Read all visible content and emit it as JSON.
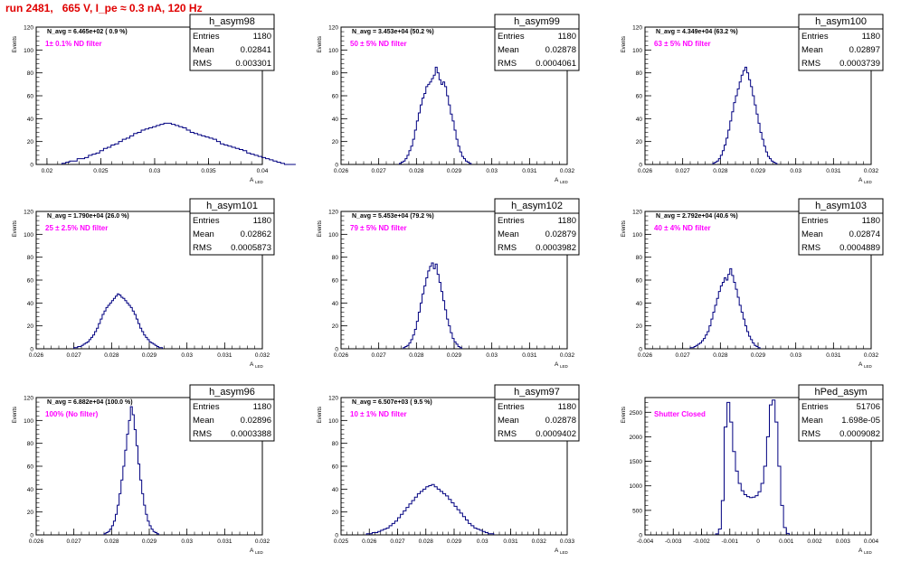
{
  "title": "run 2481,   665 V, I_pe ≈ 0.3 nA, 120 Hz",
  "colors": {
    "title": "#e00000",
    "annotation": "#ff00ff",
    "histogram": "#000080",
    "axis": "#000000"
  },
  "stat_labels": {
    "entries": "Entries",
    "mean": "Mean",
    "rms": "RMS"
  },
  "y_axis_label": "Events",
  "x_axis_label": "A",
  "x_axis_label_sub": "LED",
  "chart_data": [
    {
      "type": "bar",
      "name": "h_asym98",
      "n_avg": "N_avg = 6.465e+02 ( 0.9 %)",
      "filter": "1± 0.1% ND filter",
      "entries": "1180",
      "mean": "0.02841",
      "rms": "0.003301",
      "xlim": [
        0.019,
        0.04
      ],
      "ylim": [
        0,
        120
      ],
      "xticks": [
        0.02,
        0.025,
        0.03,
        0.035,
        0.04
      ],
      "xtick_labels": [
        "0.02",
        "0.025",
        "0.03",
        "0.035",
        "0.04"
      ],
      "yticks": [
        0,
        20,
        40,
        60,
        80,
        100,
        120
      ],
      "bins": {
        "start": 0.0214,
        "width": 0.00035,
        "values": [
          1,
          2,
          3,
          3,
          5,
          5,
          6,
          8,
          9,
          10,
          12,
          14,
          15,
          17,
          18,
          20,
          22,
          23,
          25,
          27,
          28,
          30,
          31,
          32,
          33,
          34,
          35,
          36,
          36,
          35,
          34,
          33,
          32,
          30,
          28,
          27,
          26,
          25,
          24,
          23,
          22,
          20,
          18,
          17,
          16,
          15,
          14,
          13,
          12,
          10,
          9,
          8,
          7,
          6,
          5,
          4,
          3,
          2,
          1,
          0,
          0,
          0
        ]
      }
    },
    {
      "type": "bar",
      "name": "h_asym99",
      "n_avg": "N_avg = 3.453e+04 (50.2 %)",
      "filter": "50 ± 5% ND filter",
      "entries": "1180",
      "mean": "0.02878",
      "rms": "0.0004061",
      "xlim": [
        0.026,
        0.032
      ],
      "ylim": [
        0,
        120
      ],
      "xticks": [
        0.026,
        0.027,
        0.028,
        0.029,
        0.03,
        0.031,
        0.032
      ],
      "xtick_labels": [
        "0.026",
        "0.027",
        "0.028",
        "0.029",
        "0.03",
        "0.031",
        "0.032"
      ],
      "yticks": [
        0,
        20,
        40,
        60,
        80,
        100,
        120
      ],
      "bins": {
        "start": 0.02755,
        "width": 5e-05,
        "values": [
          1,
          2,
          3,
          5,
          8,
          12,
          16,
          22,
          30,
          38,
          45,
          52,
          58,
          62,
          68,
          70,
          72,
          75,
          78,
          85,
          80,
          74,
          70,
          72,
          68,
          60,
          52,
          44,
          38,
          30,
          22,
          16,
          11,
          7,
          5,
          3,
          2,
          1
        ]
      }
    },
    {
      "type": "bar",
      "name": "h_asym100",
      "n_avg": "N_avg = 4.349e+04 (63.2 %)",
      "filter": "63 ± 5% ND filter",
      "entries": "1180",
      "mean": "0.02897",
      "rms": "0.0003739",
      "xlim": [
        0.026,
        0.032
      ],
      "ylim": [
        0,
        120
      ],
      "xticks": [
        0.026,
        0.027,
        0.028,
        0.029,
        0.03,
        0.031,
        0.032
      ],
      "xtick_labels": [
        "0.026",
        "0.027",
        "0.028",
        "0.029",
        "0.03",
        "0.031",
        "0.032"
      ],
      "yticks": [
        0,
        20,
        40,
        60,
        80,
        100,
        120
      ],
      "bins": {
        "start": 0.0278,
        "width": 5e-05,
        "values": [
          1,
          2,
          3,
          5,
          8,
          12,
          17,
          23,
          30,
          38,
          46,
          54,
          60,
          66,
          72,
          78,
          82,
          85,
          80,
          74,
          68,
          60,
          52,
          44,
          36,
          28,
          22,
          16,
          11,
          7,
          5,
          3,
          2,
          1
        ]
      }
    },
    {
      "type": "bar",
      "name": "h_asym101",
      "n_avg": "N_avg = 1.790e+04 (26.0 %)",
      "filter": "25 ± 2.5% ND filter",
      "entries": "1180",
      "mean": "0.02862",
      "rms": "0.0005873",
      "xlim": [
        0.026,
        0.032
      ],
      "ylim": [
        0,
        120
      ],
      "xticks": [
        0.026,
        0.027,
        0.028,
        0.029,
        0.03,
        0.031,
        0.032
      ],
      "xtick_labels": [
        "0.026",
        "0.027",
        "0.028",
        "0.029",
        "0.03",
        "0.031",
        "0.032"
      ],
      "yticks": [
        0,
        20,
        40,
        60,
        80,
        100,
        120
      ],
      "bins": {
        "start": 0.027,
        "width": 5e-05,
        "values": [
          1,
          1,
          2,
          2,
          3,
          4,
          5,
          6,
          8,
          10,
          12,
          15,
          18,
          22,
          26,
          30,
          33,
          36,
          38,
          40,
          42,
          44,
          46,
          48,
          47,
          45,
          44,
          42,
          40,
          38,
          36,
          33,
          30,
          26,
          22,
          18,
          15,
          12,
          10,
          8,
          6,
          5,
          4,
          3,
          2,
          1,
          1
        ]
      }
    },
    {
      "type": "bar",
      "name": "h_asym102",
      "n_avg": "N_avg = 5.453e+04 (79.2 %)",
      "filter": "79 ± 5% ND filter",
      "entries": "1180",
      "mean": "0.02879",
      "rms": "0.0003982",
      "xlim": [
        0.026,
        0.032
      ],
      "ylim": [
        0,
        120
      ],
      "xticks": [
        0.026,
        0.027,
        0.028,
        0.029,
        0.03,
        0.031,
        0.032
      ],
      "xtick_labels": [
        "0.026",
        "0.027",
        "0.028",
        "0.029",
        "0.03",
        "0.031",
        "0.032"
      ],
      "yticks": [
        0,
        20,
        40,
        60,
        80,
        100,
        120
      ],
      "bins": {
        "start": 0.02765,
        "width": 5e-05,
        "values": [
          1,
          2,
          3,
          5,
          8,
          12,
          17,
          24,
          32,
          40,
          48,
          55,
          62,
          68,
          72,
          75,
          70,
          74,
          65,
          58,
          50,
          42,
          34,
          26,
          20,
          14,
          9,
          6,
          4,
          2,
          1
        ]
      }
    },
    {
      "type": "bar",
      "name": "h_asym103",
      "n_avg": "N_avg = 2.792e+04 (40.6 %)",
      "filter": "40 ± 4% ND filter",
      "entries": "1180",
      "mean": "0.02874",
      "rms": "0.0004889",
      "xlim": [
        0.026,
        0.032
      ],
      "ylim": [
        0,
        120
      ],
      "xticks": [
        0.026,
        0.027,
        0.028,
        0.029,
        0.03,
        0.031,
        0.032
      ],
      "xtick_labels": [
        "0.026",
        "0.027",
        "0.028",
        "0.029",
        "0.03",
        "0.031",
        "0.032"
      ],
      "yticks": [
        0,
        20,
        40,
        60,
        80,
        100,
        120
      ],
      "bins": {
        "start": 0.0272,
        "width": 5e-05,
        "values": [
          1,
          1,
          2,
          3,
          4,
          5,
          7,
          9,
          12,
          15,
          20,
          26,
          32,
          38,
          44,
          50,
          55,
          58,
          62,
          60,
          65,
          70,
          64,
          58,
          52,
          45,
          38,
          32,
          26,
          20,
          15,
          11,
          8,
          5,
          3,
          2,
          1
        ]
      }
    },
    {
      "type": "bar",
      "name": "h_asym96",
      "n_avg": "N_avg = 6.882e+04 (100.0 %)",
      "filter": "100% (No filter)",
      "entries": "1180",
      "mean": "0.02896",
      "rms": "0.0003388",
      "xlim": [
        0.026,
        0.032
      ],
      "ylim": [
        0,
        120
      ],
      "xticks": [
        0.026,
        0.027,
        0.028,
        0.029,
        0.03,
        0.031,
        0.032
      ],
      "xtick_labels": [
        "0.026",
        "0.027",
        "0.028",
        "0.029",
        "0.03",
        "0.031",
        "0.032"
      ],
      "yticks": [
        0,
        20,
        40,
        60,
        80,
        100,
        120
      ],
      "bins": {
        "start": 0.0278,
        "width": 5e-05,
        "values": [
          1,
          2,
          3,
          5,
          8,
          12,
          18,
          26,
          36,
          48,
          60,
          74,
          88,
          100,
          112,
          105,
          92,
          78,
          62,
          48,
          36,
          26,
          18,
          12,
          8,
          5,
          3,
          2,
          1
        ]
      }
    },
    {
      "type": "bar",
      "name": "h_asym97",
      "n_avg": "N_avg = 6.507e+03 ( 9.5 %)",
      "filter": "10 ± 1% ND filter",
      "entries": "1180",
      "mean": "0.02878",
      "rms": "0.0009402",
      "xlim": [
        0.025,
        0.033
      ],
      "ylim": [
        0,
        120
      ],
      "xticks": [
        0.025,
        0.026,
        0.027,
        0.028,
        0.029,
        0.03,
        0.031,
        0.032,
        0.033
      ],
      "xtick_labels": [
        "0.025",
        "0.026",
        "0.027",
        "0.028",
        "0.029",
        "0.03",
        "0.031",
        "0.032",
        "0.033"
      ],
      "yticks": [
        0,
        20,
        40,
        60,
        80,
        100,
        120
      ],
      "bins": {
        "start": 0.0259,
        "width": 0.0001,
        "values": [
          1,
          1,
          2,
          2,
          3,
          4,
          5,
          6,
          8,
          10,
          12,
          15,
          18,
          21,
          24,
          27,
          30,
          33,
          36,
          38,
          40,
          42,
          43,
          44,
          42,
          40,
          38,
          36,
          34,
          31,
          28,
          25,
          22,
          19,
          16,
          13,
          10,
          8,
          6,
          5,
          4,
          3,
          2,
          1,
          1
        ]
      }
    },
    {
      "type": "bar",
      "name": "hPed_asym",
      "n_avg": "",
      "filter": "Shutter Closed",
      "entries": "51706",
      "mean": "1.698e-05",
      "rms": "0.0009082",
      "xlim": [
        -0.004,
        0.004
      ],
      "ylim": [
        0,
        2800
      ],
      "xticks": [
        -0.004,
        -0.003,
        -0.002,
        -0.001,
        0,
        0.001,
        0.002,
        0.003,
        0.004
      ],
      "xtick_labels": [
        "-0.004",
        "-0.003",
        "-0.002",
        "-0.001",
        "0",
        "0.001",
        "0.002",
        "0.003",
        "0.004"
      ],
      "yticks": [
        0,
        500,
        1000,
        1500,
        2000,
        2500
      ],
      "bins": {
        "start": -0.0015,
        "width": 0.0001,
        "values": [
          20,
          120,
          700,
          2200,
          2700,
          2300,
          1700,
          1300,
          1050,
          900,
          820,
          780,
          760,
          770,
          800,
          880,
          1050,
          1400,
          2000,
          2650,
          2750,
          2300,
          1400,
          600,
          150,
          30
        ]
      }
    }
  ]
}
